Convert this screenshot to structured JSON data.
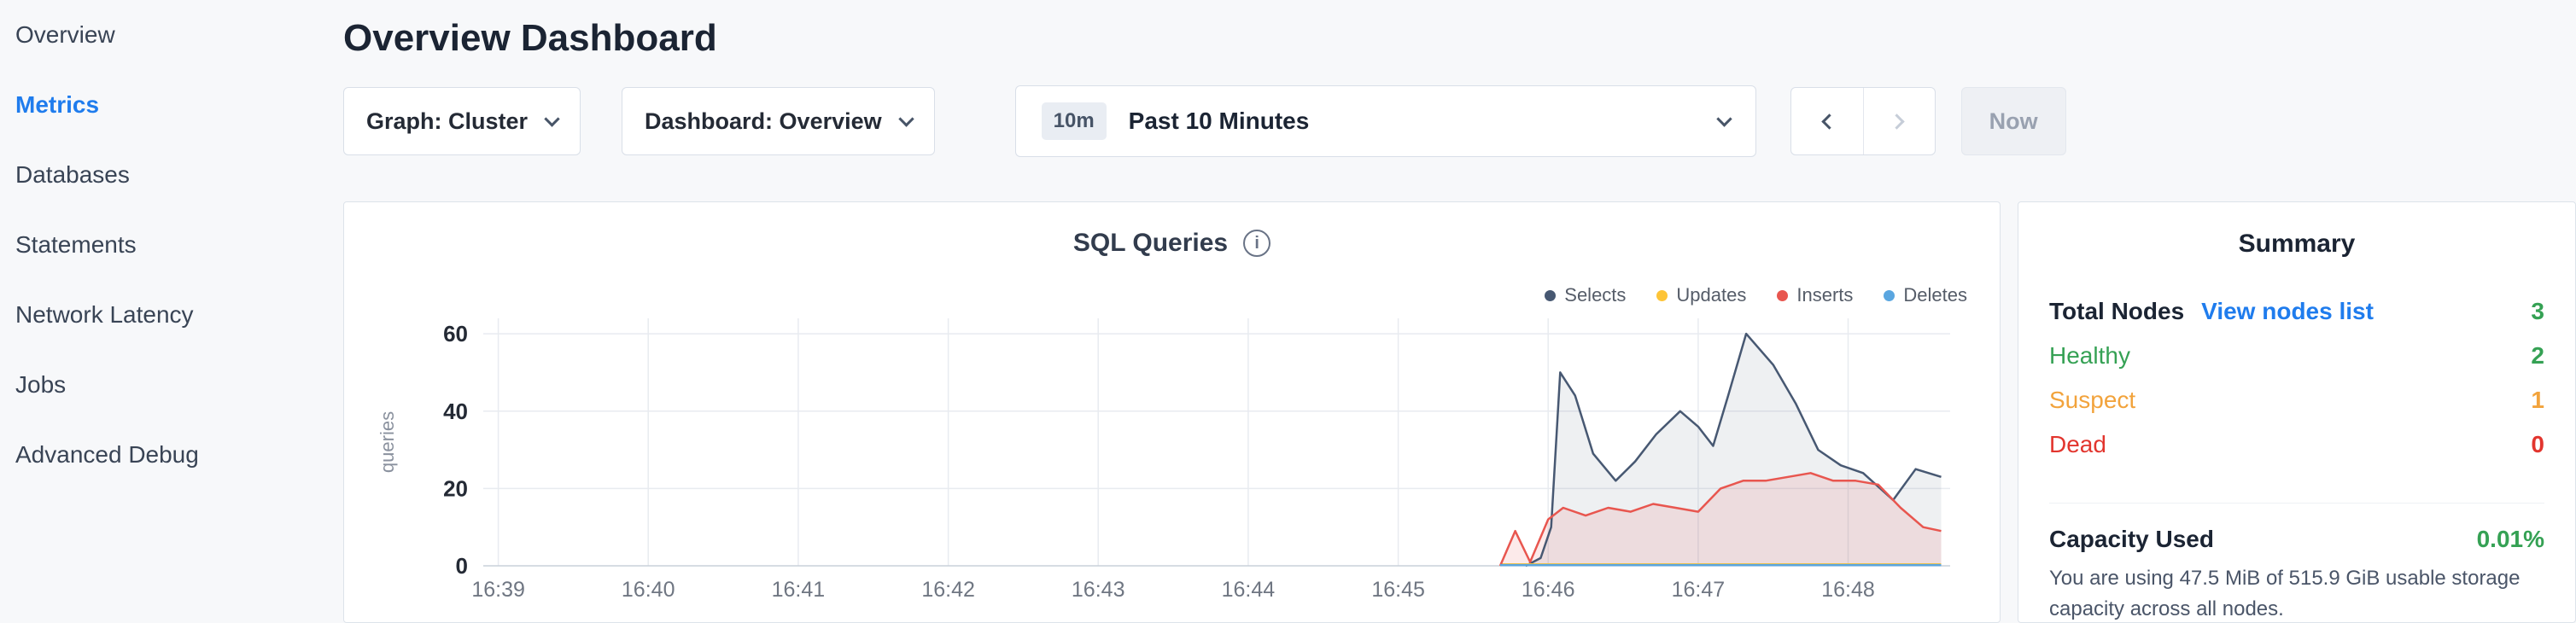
{
  "header": {
    "title": "Overview Dashboard"
  },
  "sidebar": {
    "items": [
      {
        "label": "Overview"
      },
      {
        "label": "Metrics",
        "active": true
      },
      {
        "label": "Databases"
      },
      {
        "label": "Statements"
      },
      {
        "label": "Network Latency"
      },
      {
        "label": "Jobs"
      },
      {
        "label": "Advanced Debug"
      }
    ]
  },
  "toolbar": {
    "graph_dropdown": {
      "label": "Graph: Cluster"
    },
    "dashboard_dropdown": {
      "label": "Dashboard: Overview"
    },
    "time_range": {
      "badge": "10m",
      "label": "Past 10 Minutes"
    },
    "now_label": "Now"
  },
  "chart_data": {
    "type": "area",
    "title": "SQL Queries",
    "ylabel": "queries",
    "x_unit": "minutes since 16:39",
    "x_ticks": [
      "16:39",
      "16:40",
      "16:41",
      "16:42",
      "16:43",
      "16:44",
      "16:45",
      "16:46",
      "16:47",
      "16:48"
    ],
    "x_domain": [
      -0.1,
      9.68
    ],
    "y_domain": [
      0,
      64
    ],
    "y_ticks": [
      0,
      20,
      40,
      60
    ],
    "grid": true,
    "legend_position": "top-right",
    "series": [
      {
        "name": "Selects",
        "color": "#475872",
        "fill": true,
        "area_opacity": 0.09,
        "points": [
          [
            6.85,
            0
          ],
          [
            6.95,
            2
          ],
          [
            7.02,
            10
          ],
          [
            7.08,
            50
          ],
          [
            7.18,
            44
          ],
          [
            7.3,
            29
          ],
          [
            7.45,
            22
          ],
          [
            7.58,
            27
          ],
          [
            7.72,
            34
          ],
          [
            7.88,
            40
          ],
          [
            8.0,
            36
          ],
          [
            8.1,
            31
          ],
          [
            8.2,
            44
          ],
          [
            8.32,
            60
          ],
          [
            8.5,
            52
          ],
          [
            8.65,
            42
          ],
          [
            8.8,
            30
          ],
          [
            8.95,
            26
          ],
          [
            9.1,
            24
          ],
          [
            9.3,
            17
          ],
          [
            9.45,
            25
          ],
          [
            9.62,
            23
          ]
        ]
      },
      {
        "name": "Updates",
        "color": "#fdc437",
        "fill": false,
        "area_opacity": 0,
        "points": [
          [
            6.68,
            0.4
          ],
          [
            9.62,
            0.4
          ]
        ]
      },
      {
        "name": "Inserts",
        "color": "#e8564f",
        "fill": true,
        "area_opacity": 0.12,
        "points": [
          [
            6.68,
            0
          ],
          [
            6.78,
            9
          ],
          [
            6.88,
            1
          ],
          [
            7.0,
            12
          ],
          [
            7.1,
            15
          ],
          [
            7.25,
            13
          ],
          [
            7.4,
            15
          ],
          [
            7.55,
            14
          ],
          [
            7.7,
            16
          ],
          [
            7.85,
            15
          ],
          [
            8.0,
            14
          ],
          [
            8.15,
            20
          ],
          [
            8.3,
            22
          ],
          [
            8.45,
            22
          ],
          [
            8.6,
            23
          ],
          [
            8.75,
            24
          ],
          [
            8.9,
            22
          ],
          [
            9.05,
            22
          ],
          [
            9.2,
            21
          ],
          [
            9.35,
            15
          ],
          [
            9.5,
            10
          ],
          [
            9.62,
            9
          ]
        ]
      },
      {
        "name": "Deletes",
        "color": "#5aa6e0",
        "fill": false,
        "area_opacity": 0,
        "points": [
          [
            6.68,
            0.2
          ],
          [
            9.62,
            0.2
          ]
        ]
      }
    ]
  },
  "summary": {
    "title": "Summary",
    "total_nodes_label": "Total Nodes",
    "view_nodes_link": "View nodes list",
    "total_nodes_value": "3",
    "rows": [
      {
        "label": "Healthy",
        "value": "2"
      },
      {
        "label": "Suspect",
        "value": "1"
      },
      {
        "label": "Dead",
        "value": "0"
      }
    ],
    "capacity_label": "Capacity Used",
    "capacity_value": "0.01%",
    "capacity_desc": "You are using 47.5 MiB of 515.9 GiB usable storage capacity across all nodes."
  },
  "colors": {
    "accent_blue": "#1f7ced",
    "healthy_green": "#35a154",
    "suspect_orange": "#f2a33c",
    "dead_red": "#e2352e",
    "card_border": "#dde3ea",
    "page_background": "#f7f8fa"
  }
}
